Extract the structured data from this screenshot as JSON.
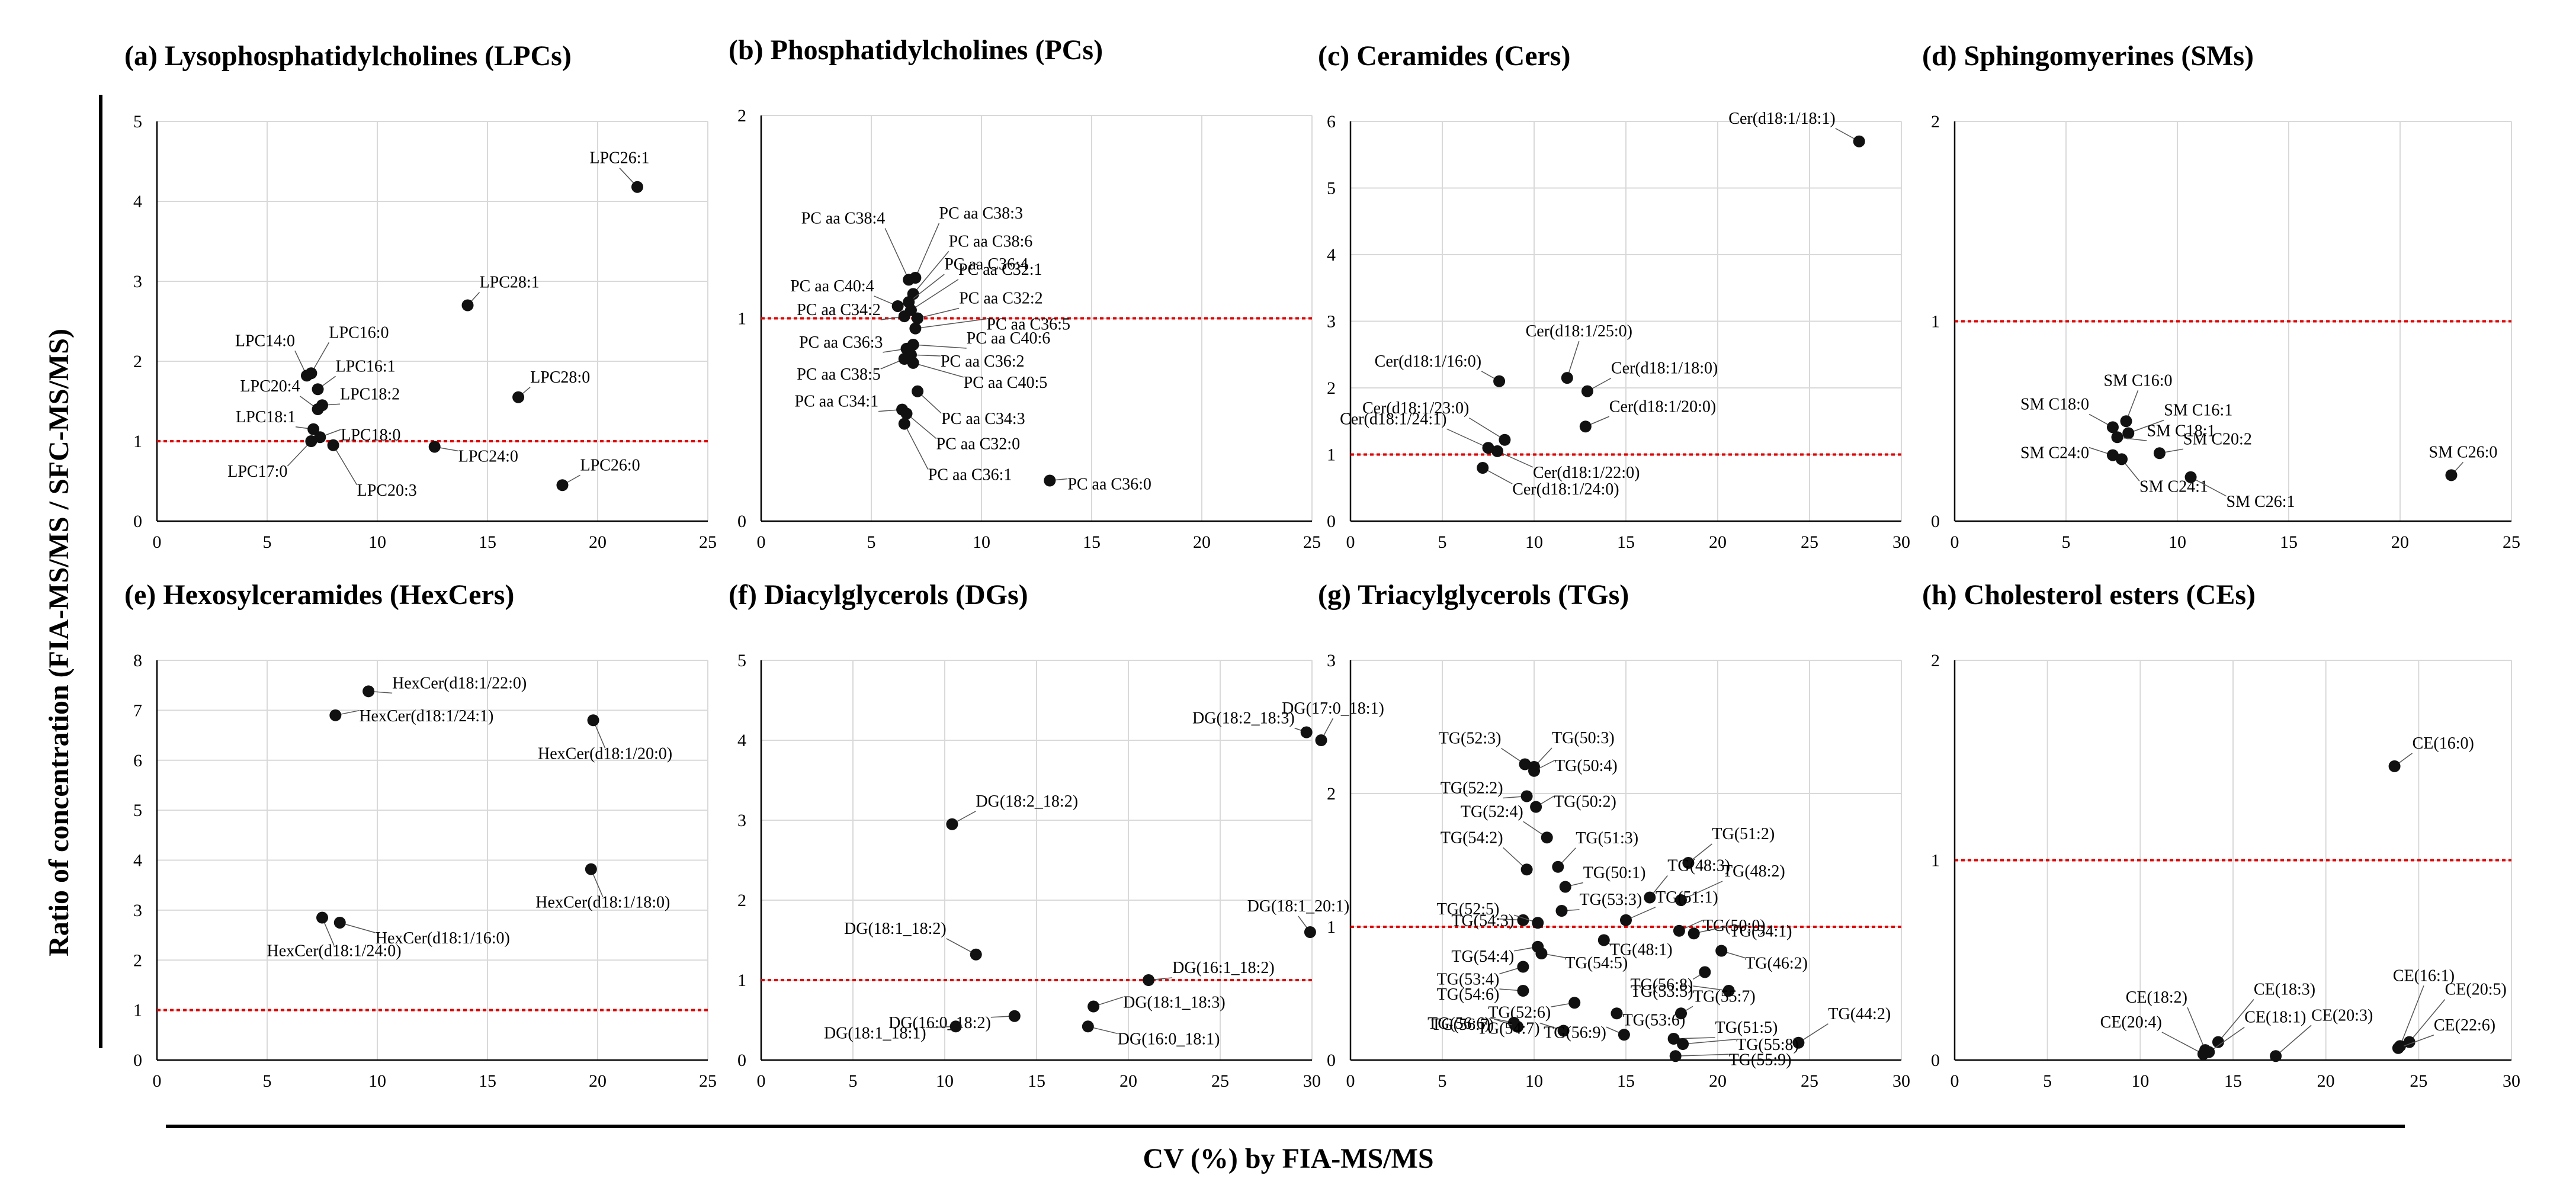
{
  "figure": {
    "ylabel": "Ratio of concentration (FIA-MS/MS / SFC-MS/MS)",
    "xlabel": "CV (%) by FIA-MS/MS",
    "colors": {
      "point": "#111111",
      "refline": "#e00000",
      "grid": "#d9d9d9",
      "axis": "#000000",
      "leader": "#555555"
    }
  },
  "chart_data": [
    {
      "type": "scatter",
      "title": "(a) Lysophosphatidylcholines (LPCs)",
      "xlim": [
        0,
        25
      ],
      "xticks": [
        0,
        5,
        10,
        15,
        20,
        25
      ],
      "ylim": [
        0,
        5
      ],
      "yticks": [
        0,
        1,
        2,
        3,
        4,
        5
      ],
      "refline": 1,
      "points": [
        {
          "label": "LPC26:1",
          "x": 21.8,
          "y": 4.18
        },
        {
          "label": "LPC28:1",
          "x": 14.1,
          "y": 2.7
        },
        {
          "label": "LPC28:0",
          "x": 16.4,
          "y": 1.55
        },
        {
          "label": "LPC14:0",
          "x": 6.8,
          "y": 1.82
        },
        {
          "label": "LPC16:0",
          "x": 7.0,
          "y": 1.85
        },
        {
          "label": "LPC16:1",
          "x": 7.3,
          "y": 1.65
        },
        {
          "label": "LPC20:4",
          "x": 7.3,
          "y": 1.4
        },
        {
          "label": "LPC18:2",
          "x": 7.5,
          "y": 1.45
        },
        {
          "label": "LPC18:1",
          "x": 7.1,
          "y": 1.15
        },
        {
          "label": "LPC18:0",
          "x": 7.4,
          "y": 1.05
        },
        {
          "label": "LPC17:0",
          "x": 7.0,
          "y": 1.0
        },
        {
          "label": "LPC20:3",
          "x": 8.0,
          "y": 0.95
        },
        {
          "label": "LPC24:0",
          "x": 12.6,
          "y": 0.93
        },
        {
          "label": "LPC26:0",
          "x": 18.4,
          "y": 0.45
        }
      ]
    },
    {
      "type": "scatter",
      "title": "(b) Phosphatidylcholines (PCs)",
      "xlim": [
        0,
        25
      ],
      "xticks": [
        0,
        5,
        10,
        15,
        20,
        25
      ],
      "ylim": [
        0,
        2
      ],
      "yticks": [
        0,
        1,
        2
      ],
      "refline": 1,
      "points": [
        {
          "label": "PC aa C38:3",
          "x": 7.0,
          "y": 1.2
        },
        {
          "label": "PC aa C38:4",
          "x": 6.7,
          "y": 1.19
        },
        {
          "label": "PC aa C38:6",
          "x": 6.9,
          "y": 1.12
        },
        {
          "label": "PC aa C36:4",
          "x": 6.7,
          "y": 1.08
        },
        {
          "label": "PC aa C40:4",
          "x": 6.2,
          "y": 1.06
        },
        {
          "label": "PC aa C32:1",
          "x": 6.8,
          "y": 1.04
        },
        {
          "label": "PC aa C34:2",
          "x": 6.5,
          "y": 1.01
        },
        {
          "label": "PC aa C32:2",
          "x": 7.1,
          "y": 1.0
        },
        {
          "label": "PC aa C36:5",
          "x": 7.0,
          "y": 0.95
        },
        {
          "label": "PC aa C40:6",
          "x": 6.9,
          "y": 0.87
        },
        {
          "label": "PC aa C36:3",
          "x": 6.6,
          "y": 0.85
        },
        {
          "label": "PC aa C36:2",
          "x": 6.8,
          "y": 0.82
        },
        {
          "label": "PC aa C38:5",
          "x": 6.5,
          "y": 0.8
        },
        {
          "label": "PC aa C40:5",
          "x": 6.9,
          "y": 0.78
        },
        {
          "label": "PC aa C34:3",
          "x": 7.1,
          "y": 0.64
        },
        {
          "label": "PC aa C34:1",
          "x": 6.4,
          "y": 0.55
        },
        {
          "label": "PC aa C32:0",
          "x": 6.6,
          "y": 0.53
        },
        {
          "label": "PC aa C36:1",
          "x": 6.5,
          "y": 0.48
        },
        {
          "label": "PC aa C36:0",
          "x": 13.1,
          "y": 0.2
        }
      ]
    },
    {
      "type": "scatter",
      "title": "(c) Ceramides (Cers)",
      "xlim": [
        0,
        30
      ],
      "xticks": [
        0,
        5,
        10,
        15,
        20,
        25,
        30
      ],
      "ylim": [
        0,
        6
      ],
      "yticks": [
        0,
        1,
        2,
        3,
        4,
        5,
        6
      ],
      "refline": 1,
      "points": [
        {
          "label": "Cer(d18:1/18:1)",
          "x": 27.7,
          "y": 5.7
        },
        {
          "label": "Cer(d18:1/25:0)",
          "x": 11.8,
          "y": 2.15
        },
        {
          "label": "Cer(d18:1/16:0)",
          "x": 8.1,
          "y": 2.1
        },
        {
          "label": "Cer(d18:1/18:0)",
          "x": 12.9,
          "y": 1.95
        },
        {
          "label": "Cer(d18:1/20:0)",
          "x": 12.8,
          "y": 1.42
        },
        {
          "label": "Cer(d18:1/23:0)",
          "x": 8.4,
          "y": 1.22
        },
        {
          "label": "Cer(d18:1/24:1)",
          "x": 7.5,
          "y": 1.1
        },
        {
          "label": "Cer(d18:1/22:0)",
          "x": 8.0,
          "y": 1.05
        },
        {
          "label": "Cer(d18:1/24:0)",
          "x": 7.2,
          "y": 0.8
        }
      ]
    },
    {
      "type": "scatter",
      "title": "(d) Sphingomyerines (SMs)",
      "xlim": [
        0,
        25
      ],
      "xticks": [
        0,
        5,
        10,
        15,
        20,
        25
      ],
      "ylim": [
        0,
        2
      ],
      "yticks": [
        0,
        1,
        2
      ],
      "refline": 1,
      "points": [
        {
          "label": "SM C16:0",
          "x": 7.7,
          "y": 0.5
        },
        {
          "label": "SM C18:0",
          "x": 7.1,
          "y": 0.47
        },
        {
          "label": "SM C16:1",
          "x": 7.8,
          "y": 0.44
        },
        {
          "label": "SM C18:1",
          "x": 7.3,
          "y": 0.42
        },
        {
          "label": "SM C20:2",
          "x": 9.2,
          "y": 0.34
        },
        {
          "label": "SM C24:0",
          "x": 7.1,
          "y": 0.33
        },
        {
          "label": "SM C24:1",
          "x": 7.5,
          "y": 0.31
        },
        {
          "label": "SM C26:1",
          "x": 10.6,
          "y": 0.22
        },
        {
          "label": "SM C26:0",
          "x": 22.3,
          "y": 0.23
        }
      ]
    },
    {
      "type": "scatter",
      "title": "(e) Hexosylceramides (HexCers)",
      "xlim": [
        0,
        25
      ],
      "xticks": [
        0,
        5,
        10,
        15,
        20,
        25
      ],
      "ylim": [
        0,
        8
      ],
      "yticks": [
        0,
        1,
        2,
        3,
        4,
        5,
        6,
        7,
        8
      ],
      "refline": 1,
      "points": [
        {
          "label": "HexCer(d18:1/22:0)",
          "x": 9.6,
          "y": 7.38
        },
        {
          "label": "HexCer(d18:1/24:1)",
          "x": 8.1,
          "y": 6.9
        },
        {
          "label": "HexCer(d18:1/20:0)",
          "x": 19.8,
          "y": 6.8
        },
        {
          "label": "HexCer(d18:1/18:0)",
          "x": 19.7,
          "y": 3.82
        },
        {
          "label": "HexCer(d18:1/16:0)",
          "x": 8.3,
          "y": 2.75
        },
        {
          "label": "HexCer(d18:1/24:0)",
          "x": 7.5,
          "y": 2.85
        }
      ]
    },
    {
      "type": "scatter",
      "title": "(f) Diacylglycerols (DGs)",
      "xlim": [
        0,
        30
      ],
      "xticks": [
        0,
        5,
        10,
        15,
        20,
        25,
        30
      ],
      "ylim": [
        0,
        5
      ],
      "yticks": [
        0,
        1,
        2,
        3,
        4,
        5
      ],
      "refline": 1,
      "points": [
        {
          "label": "DG(17:0_18:1)",
          "x": 30.5,
          "y": 4.0
        },
        {
          "label": "DG(18:2_18:3)",
          "x": 29.7,
          "y": 4.1
        },
        {
          "label": "DG(18:2_18:2)",
          "x": 10.4,
          "y": 2.95
        },
        {
          "label": "DG(18:1_20:1)",
          "x": 29.9,
          "y": 1.6
        },
        {
          "label": "DG(18:1_18:2)",
          "x": 11.7,
          "y": 1.32
        },
        {
          "label": "DG(16:1_18:2)",
          "x": 21.1,
          "y": 1.0
        },
        {
          "label": "DG(16:0_18:2)",
          "x": 13.8,
          "y": 0.55
        },
        {
          "label": "DG(18:1_18:3)",
          "x": 18.1,
          "y": 0.67
        },
        {
          "label": "DG(18:1_18:1)",
          "x": 10.6,
          "y": 0.42
        },
        {
          "label": "DG(16:0_18:1)",
          "x": 17.8,
          "y": 0.42
        }
      ]
    },
    {
      "type": "scatter",
      "title": "(g) Triacylglycerols (TGs)",
      "xlim": [
        0,
        30
      ],
      "xticks": [
        0,
        5,
        10,
        15,
        20,
        25,
        30
      ],
      "ylim": [
        0,
        3
      ],
      "yticks": [
        0,
        1,
        2,
        3
      ],
      "refline": 1,
      "points": [
        {
          "label": "TG(52:3)",
          "x": 9.5,
          "y": 2.22
        },
        {
          "label": "TG(50:3)",
          "x": 10.0,
          "y": 2.2
        },
        {
          "label": "TG(50:4)",
          "x": 10.0,
          "y": 2.17
        },
        {
          "label": "TG(52:2)",
          "x": 9.6,
          "y": 1.98
        },
        {
          "label": "TG(50:2)",
          "x": 10.1,
          "y": 1.9
        },
        {
          "label": "TG(52:4)",
          "x": 10.7,
          "y": 1.67
        },
        {
          "label": "TG(51:3)",
          "x": 11.3,
          "y": 1.45
        },
        {
          "label": "TG(51:2)",
          "x": 18.4,
          "y": 1.48
        },
        {
          "label": "TG(50:1)",
          "x": 11.7,
          "y": 1.3
        },
        {
          "label": "TG(48:3)",
          "x": 16.3,
          "y": 1.22
        },
        {
          "label": "TG(48:2)",
          "x": 18.0,
          "y": 1.2
        },
        {
          "label": "TG(53:3)",
          "x": 11.5,
          "y": 1.12
        },
        {
          "label": "TG(54:2)",
          "x": 9.6,
          "y": 1.43
        },
        {
          "label": "TG(52:5)",
          "x": 9.4,
          "y": 1.05
        },
        {
          "label": "TG(54:3)",
          "x": 10.2,
          "y": 1.03
        },
        {
          "label": "TG(51:1)",
          "x": 15.0,
          "y": 1.05
        },
        {
          "label": "TG(50:0)",
          "x": 17.9,
          "y": 0.97
        },
        {
          "label": "TG(54:1)",
          "x": 18.7,
          "y": 0.95
        },
        {
          "label": "TG(48:1)",
          "x": 13.8,
          "y": 0.9
        },
        {
          "label": "TG(46:2)",
          "x": 20.2,
          "y": 0.82
        },
        {
          "label": "TG(54:4)",
          "x": 10.2,
          "y": 0.85
        },
        {
          "label": "TG(54:5)",
          "x": 10.4,
          "y": 0.8
        },
        {
          "label": "TG(53:4)",
          "x": 9.4,
          "y": 0.7
        },
        {
          "label": "TG(56:8)",
          "x": 19.3,
          "y": 0.66
        },
        {
          "label": "TG(54:6)",
          "x": 9.4,
          "y": 0.52
        },
        {
          "label": "TG(53:5)",
          "x": 20.6,
          "y": 0.52
        },
        {
          "label": "TG(52:6)",
          "x": 12.2,
          "y": 0.43
        },
        {
          "label": "TG(53:6)",
          "x": 14.5,
          "y": 0.35
        },
        {
          "label": "TG(55:7)",
          "x": 18.0,
          "y": 0.35
        },
        {
          "label": "TG(56:6)",
          "x": 8.9,
          "y": 0.28
        },
        {
          "label": "TG(44:2)",
          "x": 24.4,
          "y": 0.13
        },
        {
          "label": "TG(56:7)",
          "x": 9.1,
          "y": 0.25
        },
        {
          "label": "TG(51:5)",
          "x": 17.6,
          "y": 0.16
        },
        {
          "label": "TG(54:7)",
          "x": 11.6,
          "y": 0.22
        },
        {
          "label": "TG(55:8)",
          "x": 18.1,
          "y": 0.12
        },
        {
          "label": "TG(56:9)",
          "x": 14.9,
          "y": 0.19
        },
        {
          "label": "TG(55:9)",
          "x": 17.7,
          "y": 0.03
        }
      ]
    },
    {
      "type": "scatter",
      "title": "(h) Cholesterol esters (CEs)",
      "xlim": [
        0,
        30
      ],
      "xticks": [
        0,
        5,
        10,
        15,
        20,
        25,
        30
      ],
      "ylim": [
        0,
        2
      ],
      "yticks": [
        0,
        1,
        2
      ],
      "refline": 1,
      "points": [
        {
          "label": "CE(16:0)",
          "x": 23.7,
          "y": 1.47
        },
        {
          "label": "CE(18:3)",
          "x": 14.2,
          "y": 0.09
        },
        {
          "label": "CE(18:2)",
          "x": 13.5,
          "y": 0.05
        },
        {
          "label": "CE(18:1)",
          "x": 13.7,
          "y": 0.04
        },
        {
          "label": "CE(20:4)",
          "x": 13.4,
          "y": 0.03
        },
        {
          "label": "CE(20:3)",
          "x": 17.3,
          "y": 0.02
        },
        {
          "label": "CE(16:1)",
          "x": 24.0,
          "y": 0.07
        },
        {
          "label": "CE(20:5)",
          "x": 24.5,
          "y": 0.09
        },
        {
          "label": "CE(22:6)",
          "x": 23.9,
          "y": 0.06
        }
      ]
    }
  ]
}
